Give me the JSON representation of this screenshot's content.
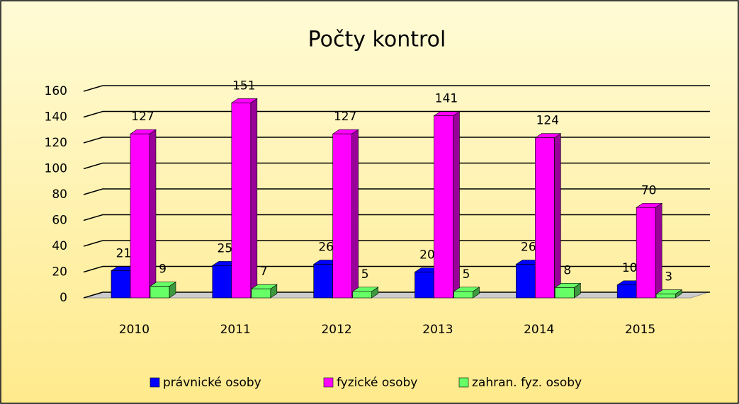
{
  "chart_data": {
    "type": "bar3d",
    "title": "Počty kontrol",
    "categories": [
      "2010",
      "2011",
      "2012",
      "2013",
      "2014",
      "2015"
    ],
    "series": [
      {
        "name": "právnické osoby",
        "color": "#0000ff",
        "label_color": "#2a2ad0",
        "values": [
          21,
          25,
          26,
          20,
          26,
          10
        ]
      },
      {
        "name": "fyzické osoby",
        "color": "#ff00ff",
        "label_color": "#cc33cc",
        "values": [
          127,
          151,
          127,
          141,
          124,
          70
        ]
      },
      {
        "name": "zahran. fyz. osoby",
        "color": "#66ff66",
        "label_color": "#333333",
        "values": [
          9,
          7,
          5,
          5,
          8,
          3
        ]
      }
    ],
    "ylim": [
      0,
      160
    ],
    "yticks": [
      0,
      20,
      40,
      60,
      80,
      100,
      120,
      140,
      160
    ],
    "grid": true,
    "legend": "bottom"
  }
}
